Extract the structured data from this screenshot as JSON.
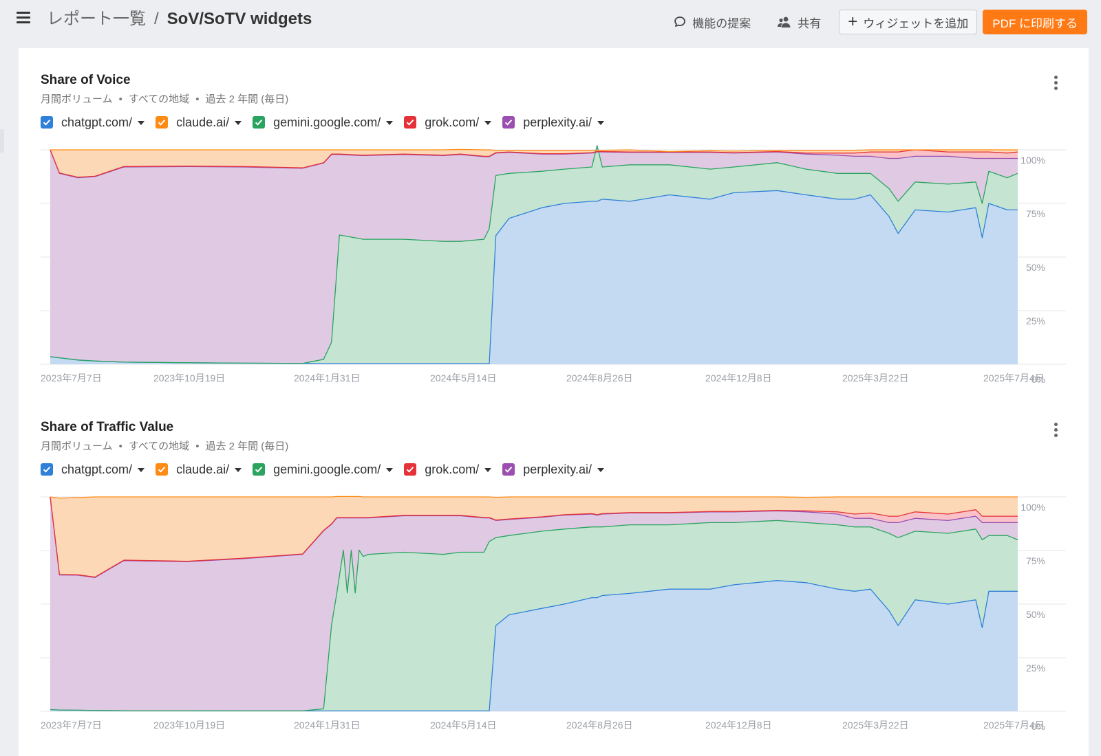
{
  "header": {
    "breadcrumb_parent": "レポート一覧",
    "breadcrumb_separator": "/",
    "title": "SoV/SoTV widgets",
    "suggest_label": "機能の提案",
    "share_label": "共有",
    "add_widget_label": "ウィジェットを追加",
    "pdf_label": "PDF に印刷する"
  },
  "widgets": [
    {
      "title": "Share of Voice",
      "subtitle": [
        "月間ボリューム",
        "すべての地域",
        "過去 2 年間 (毎日)"
      ],
      "legend": [
        {
          "label": "chatgpt.com/",
          "color": "#2f80d8"
        },
        {
          "label": "claude.ai/",
          "color": "#ff8a14"
        },
        {
          "label": "gemini.google.com/",
          "color": "#2aa35f"
        },
        {
          "label": "grok.com/",
          "color": "#e53238"
        },
        {
          "label": "perplexity.ai/",
          "color": "#9b4fb0"
        }
      ]
    },
    {
      "title": "Share of Traffic Value",
      "subtitle": [
        "月間ボリューム",
        "すべての地域",
        "過去 2 年間 (毎日)"
      ],
      "legend": [
        {
          "label": "chatgpt.com/",
          "color": "#2f80d8"
        },
        {
          "label": "claude.ai/",
          "color": "#ff8a14"
        },
        {
          "label": "gemini.google.com/",
          "color": "#2aa35f"
        },
        {
          "label": "grok.com/",
          "color": "#e53238"
        },
        {
          "label": "perplexity.ai/",
          "color": "#9b4fb0"
        }
      ]
    }
  ],
  "chart_data": [
    {
      "type": "area",
      "stacked": true,
      "title": "Share of Voice",
      "x_ticks": [
        "2023年7月7日",
        "2023年10月19日",
        "2024年1月31日",
        "2024年5月14日",
        "2024年8月26日",
        "2024年12月8日",
        "2025年3月22日",
        "2025年7月4日"
      ],
      "y_ticks": [
        "0%",
        "25%",
        "50%",
        "75%",
        "100%"
      ],
      "ylim": [
        0,
        100
      ],
      "x": [
        "2023-07-07",
        "2023-07-14",
        "2023-07-28",
        "2023-08-10",
        "2023-09-01",
        "2023-10-19",
        "2023-12-01",
        "2024-01-15",
        "2024-01-31",
        "2024-02-06",
        "2024-02-12",
        "2024-03-01",
        "2024-04-01",
        "2024-05-01",
        "2024-05-14",
        "2024-06-01",
        "2024-06-05",
        "2024-06-10",
        "2024-06-20",
        "2024-07-15",
        "2024-08-01",
        "2024-08-22",
        "2024-08-26",
        "2024-08-30",
        "2024-09-20",
        "2024-10-20",
        "2024-11-20",
        "2024-12-08",
        "2025-01-10",
        "2025-02-01",
        "2025-02-25",
        "2025-03-10",
        "2025-03-22",
        "2025-04-05",
        "2025-04-12",
        "2025-04-25",
        "2025-05-20",
        "2025-06-10",
        "2025-06-15",
        "2025-06-20",
        "2025-07-04",
        "2025-07-12"
      ],
      "series": [
        {
          "name": "chatgpt.com/",
          "values": [
            3.5,
            3.0,
            2.0,
            1.5,
            1.0,
            0.7,
            0.5,
            0.4,
            0.3,
            0.3,
            0.3,
            0.3,
            0.3,
            0.3,
            0.3,
            0.3,
            0.3,
            60,
            68,
            73,
            75,
            76,
            76,
            77,
            76,
            79,
            77,
            80,
            81,
            79,
            77,
            77,
            79,
            69,
            61,
            72,
            71,
            73,
            59,
            75,
            72,
            72
          ]
        },
        {
          "name": "gemini.google.com/",
          "values": [
            0,
            0,
            0,
            0,
            0,
            0,
            0,
            0,
            2,
            10,
            60,
            58,
            58,
            57,
            57,
            58,
            63,
            28,
            21,
            17,
            16,
            16,
            26,
            15,
            17,
            14,
            14,
            12,
            13,
            12,
            12,
            12,
            10,
            13,
            15,
            13,
            13,
            12,
            16,
            15,
            15,
            17
          ]
        },
        {
          "name": "perplexity.ai/",
          "values": [
            96.3,
            86.0,
            85.0,
            86.0,
            91.0,
            91.5,
            91.5,
            91.0,
            91.5,
            87.5,
            37.5,
            39.0,
            39.5,
            40.0,
            40.5,
            38.5,
            33.5,
            10.5,
            9.8,
            8.0,
            7.0,
            6.5,
            -3.0,
            7.0,
            5.8,
            5.8,
            7.8,
            6.5,
            5.0,
            7.0,
            8.5,
            8.0,
            8.0,
            14.0,
            20.0,
            12.0,
            13.0,
            11.0,
            21.0,
            6.0,
            9.0,
            7.0
          ]
        },
        {
          "name": "grok.com/",
          "values": [
            0.2,
            0.2,
            0.2,
            0.2,
            0.2,
            0.2,
            0.2,
            0.2,
            0.2,
            0.2,
            0.2,
            0.2,
            0.2,
            0.2,
            0.2,
            0.2,
            0.2,
            0.2,
            0.2,
            0.2,
            0.2,
            0.2,
            0.2,
            0.2,
            0.2,
            0.2,
            0.2,
            0.2,
            0.2,
            0.5,
            1.0,
            1.5,
            2.0,
            3.0,
            3.0,
            3.0,
            2.0,
            3.0,
            3.0,
            3.0,
            2.5,
            3.0
          ]
        },
        {
          "name": "claude.ai/",
          "values": [
            0,
            10.8,
            12.8,
            12.3,
            7.8,
            7.6,
            7.8,
            8.4,
            6.0,
            2.0,
            2.0,
            2.5,
            2.0,
            2.5,
            2.2,
            3.0,
            3.0,
            1.1,
            0.8,
            1.6,
            1.6,
            1.1,
            0.6,
            0.6,
            1.0,
            0.2,
            0.6,
            0.7,
            0.6,
            1.3,
            1.3,
            1.3,
            1.0,
            1.0,
            1.0,
            0,
            1.0,
            1.0,
            1.0,
            1.0,
            1.5,
            1.0
          ]
        }
      ]
    },
    {
      "type": "area",
      "stacked": true,
      "title": "Share of Traffic Value",
      "x_ticks": [
        "2023年7月7日",
        "2023年10月19日",
        "2024年1月31日",
        "2024年5月14日",
        "2024年8月26日",
        "2024年12月8日",
        "2025年3月22日",
        "2025年7月4日"
      ],
      "y_ticks": [
        "0%",
        "25%",
        "50%",
        "75%",
        "100%"
      ],
      "ylim": [
        0,
        100
      ],
      "x": [
        "2023-07-07",
        "2023-07-14",
        "2023-07-28",
        "2023-08-10",
        "2023-09-01",
        "2023-10-19",
        "2023-12-01",
        "2024-01-15",
        "2024-01-31",
        "2024-02-06",
        "2024-02-10",
        "2024-02-15",
        "2024-02-18",
        "2024-02-21",
        "2024-02-24",
        "2024-02-27",
        "2024-03-01",
        "2024-03-05",
        "2024-04-01",
        "2024-05-01",
        "2024-05-14",
        "2024-06-01",
        "2024-06-05",
        "2024-06-10",
        "2024-06-20",
        "2024-07-15",
        "2024-08-01",
        "2024-08-22",
        "2024-08-26",
        "2024-08-30",
        "2024-09-20",
        "2024-10-20",
        "2024-11-20",
        "2024-12-08",
        "2025-01-10",
        "2025-02-01",
        "2025-02-25",
        "2025-03-10",
        "2025-03-22",
        "2025-04-05",
        "2025-04-12",
        "2025-04-25",
        "2025-05-20",
        "2025-06-10",
        "2025-06-15",
        "2025-06-20",
        "2025-07-04",
        "2025-07-12"
      ],
      "series": [
        {
          "name": "chatgpt.com/",
          "values": [
            0.8,
            0.6,
            0.5,
            0.4,
            0.3,
            0.3,
            0.2,
            0.2,
            0.2,
            0.2,
            0.2,
            0.2,
            0.2,
            0.2,
            0.2,
            0.2,
            0.2,
            0.2,
            0.2,
            0.2,
            0.2,
            0.2,
            0.2,
            40,
            45,
            48,
            50,
            53,
            53,
            54,
            55,
            57,
            57,
            59,
            61,
            60,
            57,
            56,
            57,
            47,
            40,
            52,
            50,
            52,
            39,
            56,
            56,
            56
          ]
        },
        {
          "name": "gemini.google.com/",
          "values": [
            0,
            0,
            0,
            0,
            0,
            0,
            0,
            0,
            1,
            40,
            55,
            75,
            55,
            75,
            55,
            75,
            72,
            73,
            74,
            73,
            74,
            74,
            79,
            41,
            37,
            36,
            35,
            33,
            33,
            32,
            32,
            30,
            31,
            29,
            28,
            28,
            30,
            30,
            29,
            36,
            41,
            32,
            33,
            33,
            41,
            26,
            26,
            24
          ]
        },
        {
          "name": "perplexity.ai/",
          "values": [
            99.0,
            63.0,
            63.0,
            62.0,
            70.0,
            69.5,
            71.0,
            73.0,
            83.0,
            47.0,
            35.0,
            15.0,
            35.0,
            15.0,
            35.0,
            15.0,
            18.0,
            17.0,
            17.0,
            18.0,
            17.0,
            16.0,
            11.0,
            8.0,
            7.5,
            6.5,
            6.5,
            6.0,
            5.5,
            6.0,
            5.5,
            5.5,
            5.0,
            5.0,
            4.5,
            5.0,
            5.0,
            4.0,
            4.0,
            5.0,
            7.0,
            6.0,
            6.0,
            6.0,
            8.0,
            6.0,
            6.0,
            8.0
          ]
        },
        {
          "name": "grok.com/",
          "values": [
            0.2,
            0.2,
            0.2,
            0.2,
            0.2,
            0.2,
            0.2,
            0.2,
            0.2,
            0.2,
            0.2,
            0.2,
            0.2,
            0.2,
            0.2,
            0.2,
            0.2,
            0.2,
            0.2,
            0.2,
            0.2,
            0.2,
            0.2,
            0.2,
            0.2,
            0.2,
            0.2,
            0.2,
            0.2,
            0.2,
            0.2,
            0.2,
            0.2,
            0.2,
            0.2,
            0.5,
            1.0,
            2.0,
            2.5,
            3.0,
            3.0,
            3.0,
            3.0,
            3.0,
            3.0,
            3.0,
            3.0,
            3.0
          ]
        },
        {
          "name": "claude.ai/",
          "values": [
            0,
            35.6,
            36.0,
            37.4,
            29.5,
            30.0,
            28.6,
            26.6,
            15.6,
            12.6,
            9.8,
            9.8,
            9.8,
            9.8,
            9.8,
            9.8,
            9.6,
            9.6,
            8.6,
            8.6,
            8.6,
            9.6,
            9.6,
            10.6,
            10.3,
            9.3,
            8.3,
            7.8,
            8.3,
            7.8,
            7.3,
            7.3,
            6.8,
            6.8,
            6.3,
            6.3,
            7.0,
            8.0,
            7.5,
            9.0,
            9.0,
            7.0,
            8.0,
            6.0,
            9.0,
            9.0,
            9.0,
            9.0
          ]
        }
      ]
    }
  ],
  "colors": {
    "chatgpt_fill": "#c4daf2",
    "claude_fill": "#fdd8b6",
    "gemini_fill": "#c5e5d2",
    "grok_fill": "#f8c2c8",
    "perplexity_fill": "#e0cae3",
    "pdf_button": "#ff7a14"
  },
  "icons": [
    "menu-icon",
    "chat-bubble-icon",
    "users-icon",
    "plus-icon",
    "kebab-icon",
    "checkbox-checked-icon",
    "chevron-down-icon"
  ]
}
